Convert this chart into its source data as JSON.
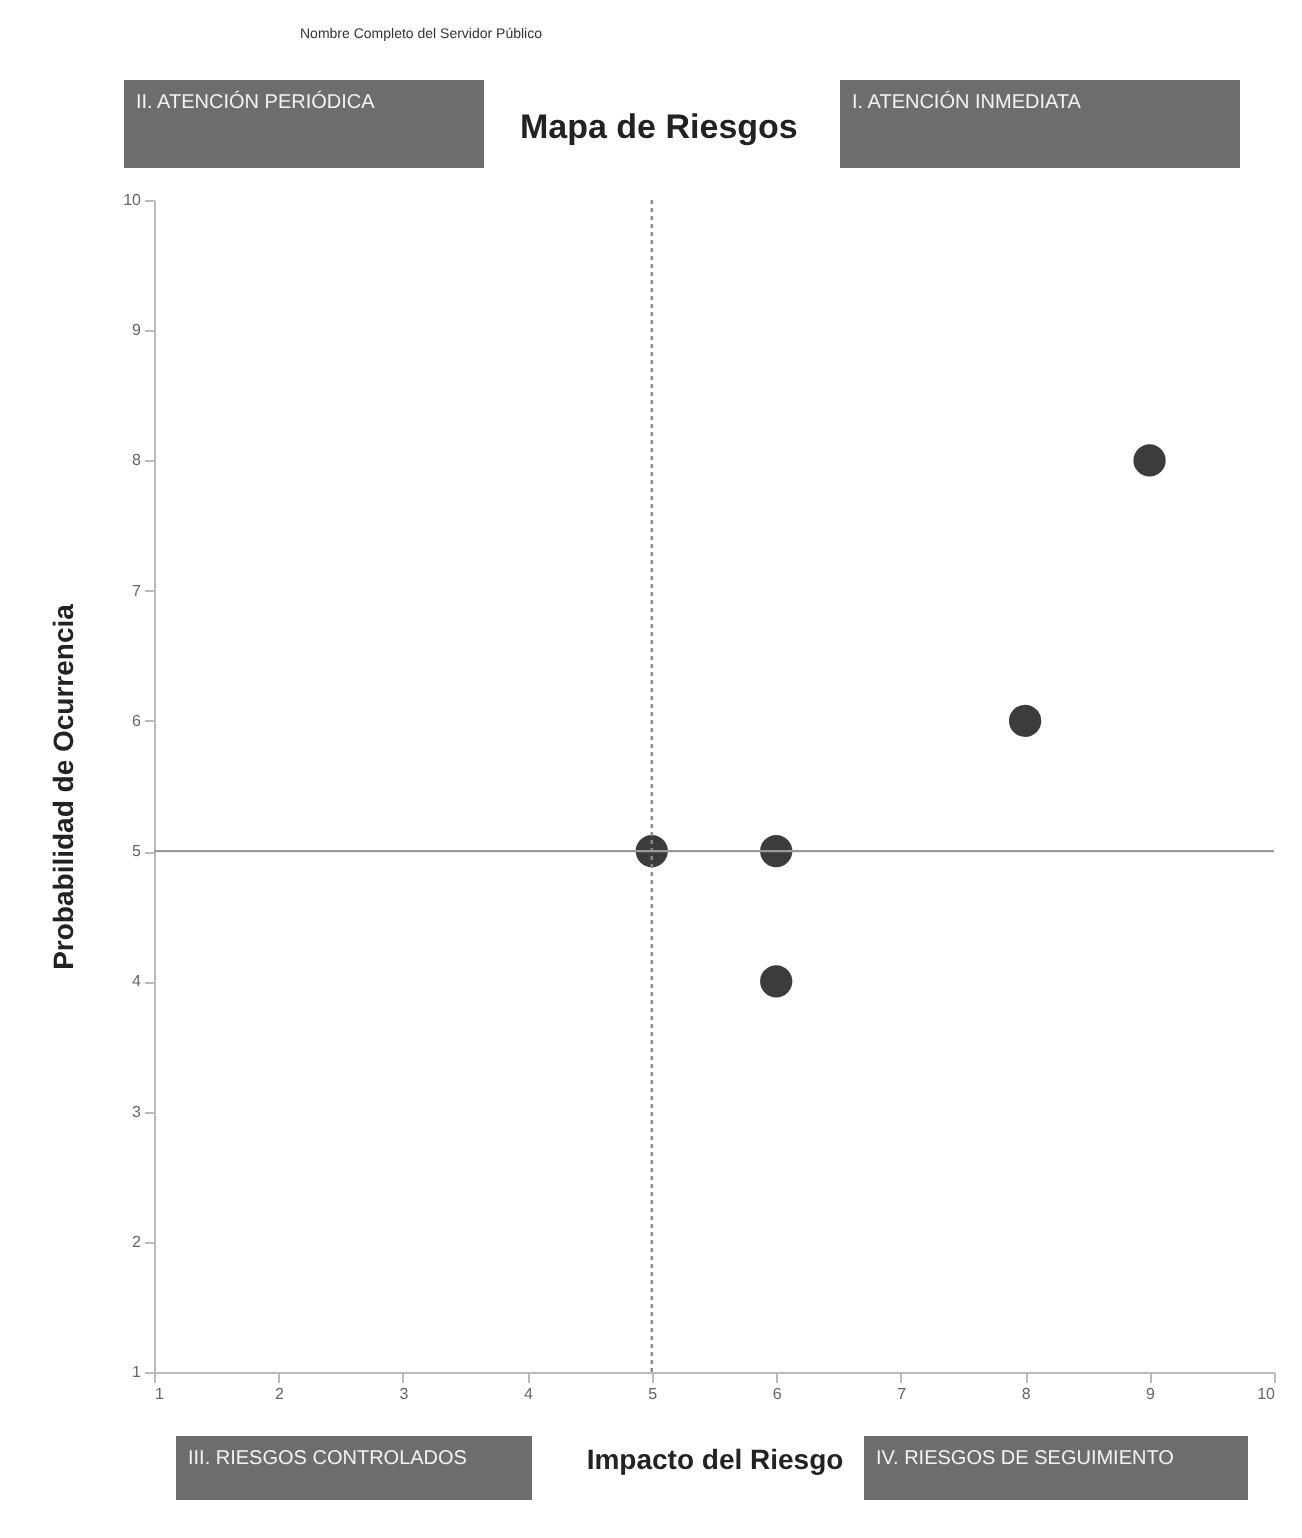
{
  "chart_data": {
    "type": "scatter",
    "title": "Mapa de Riesgos",
    "xlabel": "Impacto del Riesgo",
    "ylabel": "Probabilidad de Ocurrencia",
    "annotations": [
      "Nombre Completo del Servidor Público",
      "II. ATENCIÓN PERIÓDICA",
      "I. ATENCIÓN INMEDIATA",
      "III. RIESGOS CONTROLADOS",
      "IV. RIESGOS DE SEGUIMIENTO"
    ],
    "x": [
      5,
      6,
      6,
      8,
      9
    ],
    "series": [
      {
        "color": "#3c3c3c",
        "values": [
          5,
          5,
          4,
          6,
          8
        ]
      }
    ],
    "xlim": [
      1,
      10
    ],
    "xticks": [
      1,
      2,
      3,
      4,
      5,
      6,
      7,
      8,
      9,
      10
    ],
    "ylim": [
      1,
      10
    ],
    "yticks": [
      1,
      2,
      3,
      4,
      5,
      6,
      7,
      8,
      9,
      10
    ],
    "grid": false,
    "marker": "circle",
    "ref_lines": [
      {
        "axis": "x",
        "value": 5,
        "color": "#8a8a8a",
        "line_style": "dotted"
      },
      {
        "axis": "y",
        "value": 5,
        "color": "#9a9a9a",
        "line_style": "solid"
      }
    ]
  }
}
